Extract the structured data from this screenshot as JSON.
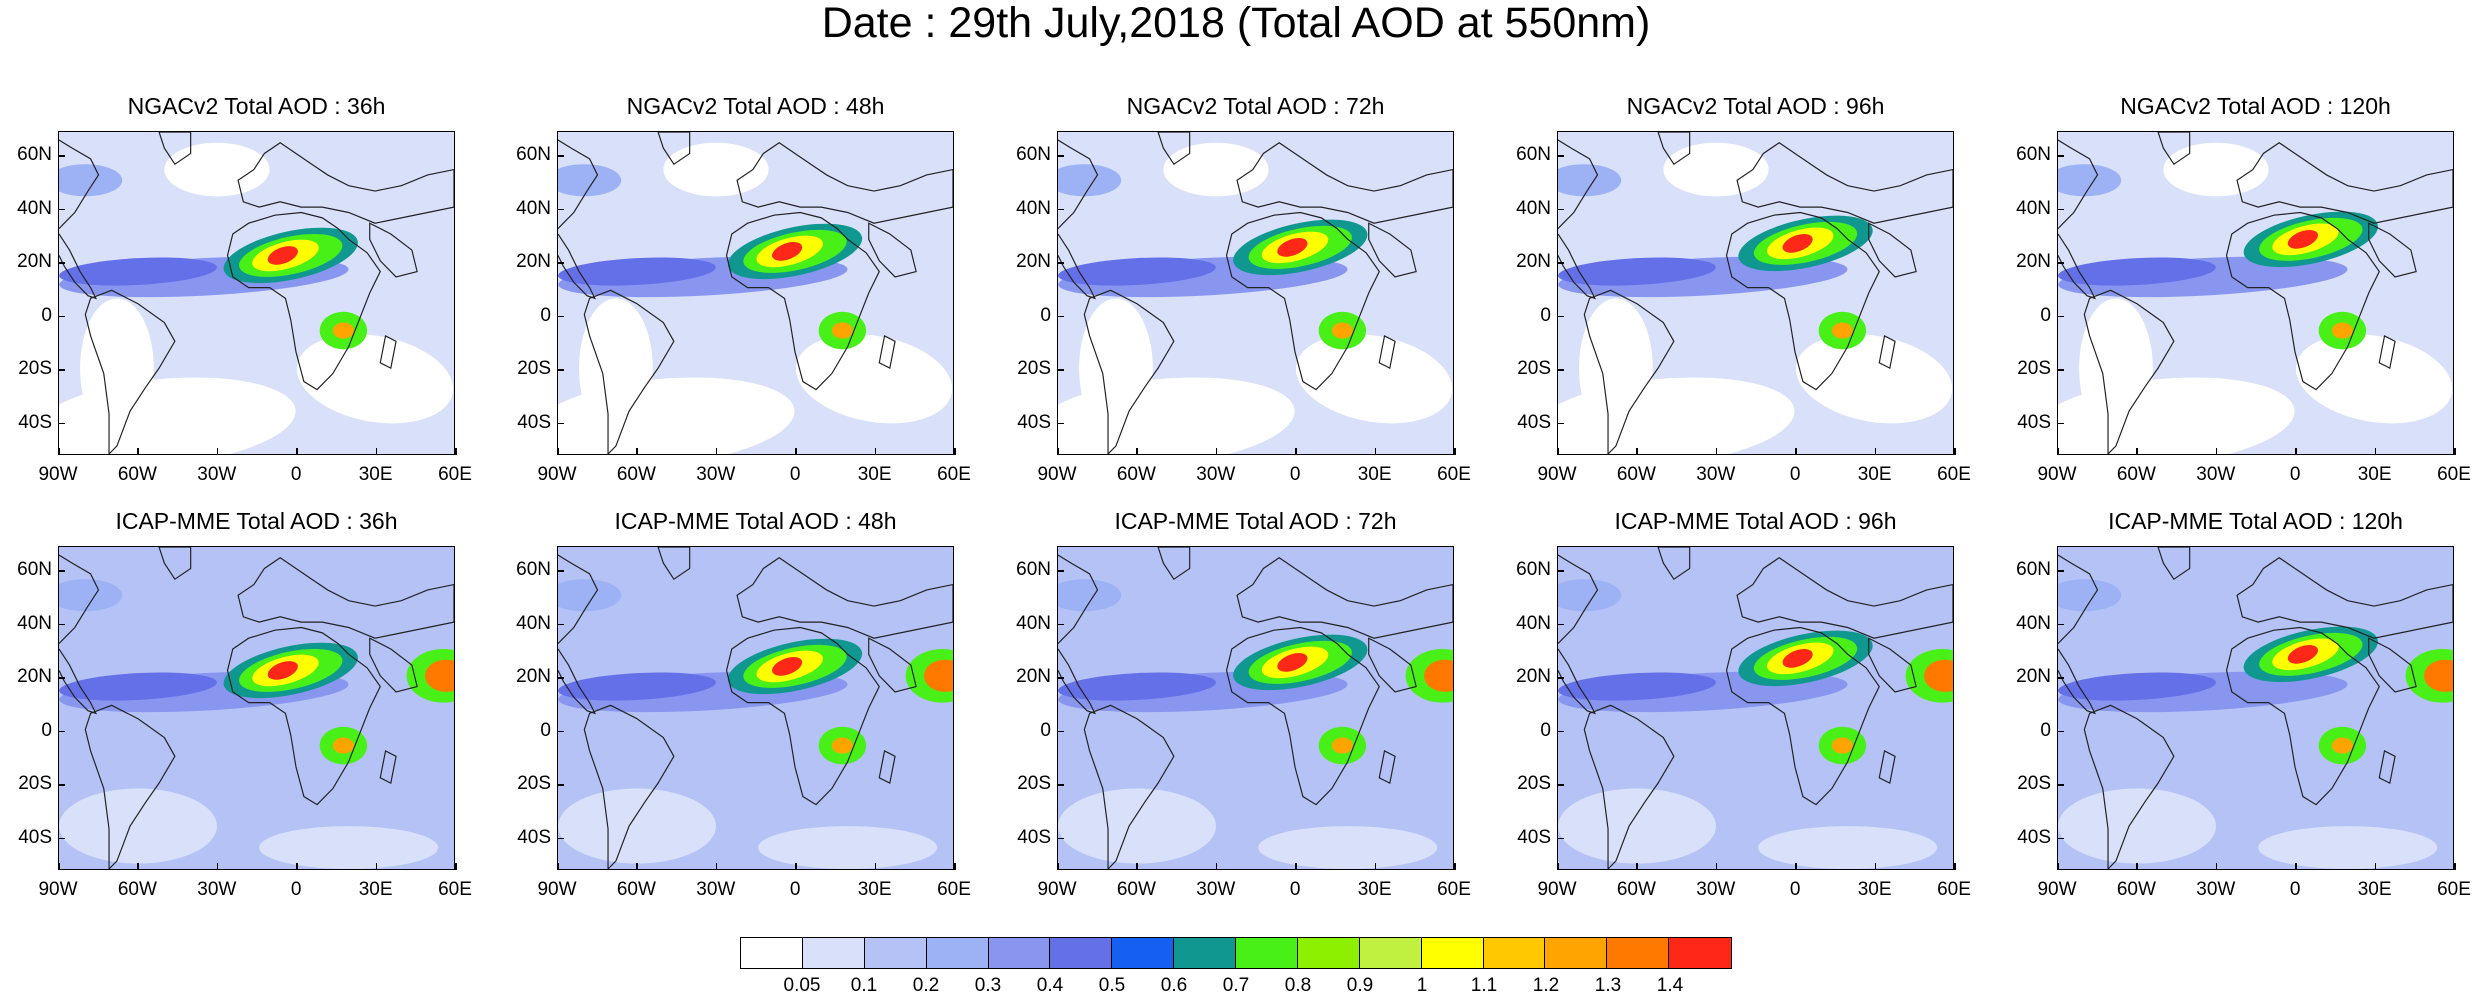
{
  "title": "Date : 29th July,2018 (Total AOD at 550nm)",
  "panels": [
    {
      "title": "NGACv2 Total AOD : 36h",
      "model": "ngac"
    },
    {
      "title": "NGACv2 Total AOD : 48h",
      "model": "ngac"
    },
    {
      "title": "NGACv2 Total AOD : 72h",
      "model": "ngac"
    },
    {
      "title": "NGACv2 Total AOD : 96h",
      "model": "ngac"
    },
    {
      "title": "NGACv2 Total AOD : 120h",
      "model": "ngac"
    },
    {
      "title": "ICAP-MME Total AOD : 36h",
      "model": "icap"
    },
    {
      "title": "ICAP-MME Total AOD : 48h",
      "model": "icap"
    },
    {
      "title": "ICAP-MME Total AOD : 72h",
      "model": "icap"
    },
    {
      "title": "ICAP-MME Total AOD : 96h",
      "model": "icap"
    },
    {
      "title": "ICAP-MME Total AOD : 120h",
      "model": "icap"
    }
  ],
  "lat_labels": [
    "60N",
    "40N",
    "20N",
    "0",
    "20S",
    "40S"
  ],
  "lon_labels": [
    "90W",
    "60W",
    "30W",
    "0",
    "30E",
    "60E"
  ],
  "colorbar": {
    "colors": [
      "#ffffff",
      "#d8e0fa",
      "#b4c2f6",
      "#9cb2f4",
      "#8896f0",
      "#6470e8",
      "#1460f0",
      "#109890",
      "#48f018",
      "#8cf000",
      "#c0f040",
      "#ffff00",
      "#ffc800",
      "#ffa400",
      "#ff7800",
      "#ff2818"
    ],
    "labels": [
      "0.05",
      "0.1",
      "0.2",
      "0.3",
      "0.4",
      "0.5",
      "0.6",
      "0.7",
      "0.8",
      "0.9",
      "1",
      "1.1",
      "1.2",
      "1.3",
      "1.4"
    ]
  }
}
